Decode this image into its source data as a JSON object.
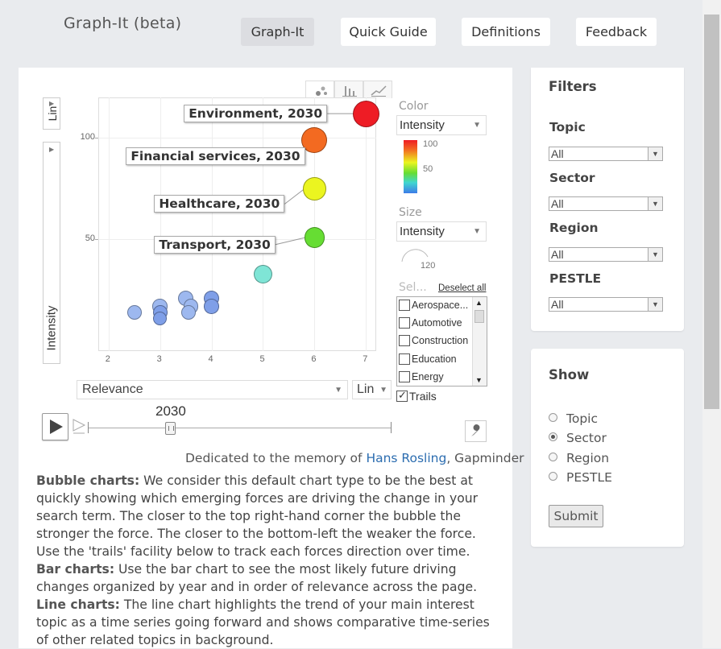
{
  "header": {
    "app_title": "Graph-It (beta)",
    "nav": [
      {
        "label": "Graph-It",
        "active": true
      },
      {
        "label": "Quick Guide",
        "active": false
      },
      {
        "label": "Definitions",
        "active": false
      },
      {
        "label": "Feedback",
        "active": false
      }
    ]
  },
  "chart": {
    "y_scale_label": "Lin",
    "y_axis_title": "Intensity",
    "x_axis_select": "Relevance",
    "x_scale_select": "Lin",
    "color_label": "Color",
    "color_select": "Intensity",
    "color_legend_ticks": [
      "100",
      "50"
    ],
    "size_label": "Size",
    "size_select": "Intensity",
    "size_legend_value": "120",
    "select_label": "Sel...",
    "deselect_all": "Deselect all",
    "entity_list": [
      "Aerospace...",
      "Automotive",
      "Construction",
      "Education",
      "Energy"
    ],
    "trails_label": "Trails",
    "year_label": "2030",
    "x_ticks": [
      "2",
      "3",
      "4",
      "5",
      "6",
      "7"
    ],
    "y_ticks": [
      "100",
      "50"
    ]
  },
  "chart_data": {
    "type": "scatter",
    "xlabel": "Relevance",
    "ylabel": "Intensity",
    "xlim": [
      1.8,
      7.2
    ],
    "ylim": [
      -5,
      120
    ],
    "labeled_points": [
      {
        "label": "Environment, 2030",
        "x": 7,
        "y": 112,
        "size": 120,
        "color": "#ee1c25"
      },
      {
        "label": "Financial services, 2030",
        "x": 6,
        "y": 99,
        "size": 108,
        "color": "#f36a21"
      },
      {
        "label": "Healthcare, 2030",
        "x": 6,
        "y": 75,
        "size": 78,
        "color": "#ebf520"
      },
      {
        "label": "Transport, 2030",
        "x": 6,
        "y": 51,
        "size": 54,
        "color": "#66dd33"
      }
    ],
    "points": [
      {
        "x": 5,
        "y": 33,
        "size": 40,
        "color": "#7fe5d6"
      },
      {
        "x": 2.5,
        "y": 14,
        "size": 14,
        "color": "#9db8ef"
      },
      {
        "x": 3,
        "y": 17,
        "size": 16,
        "color": "#9db8ef"
      },
      {
        "x": 3,
        "y": 14,
        "size": 14,
        "color": "#7f9fe8"
      },
      {
        "x": 3,
        "y": 11,
        "size": 12,
        "color": "#7f9fe8"
      },
      {
        "x": 3.5,
        "y": 21,
        "size": 20,
        "color": "#9db8ef"
      },
      {
        "x": 3.6,
        "y": 17,
        "size": 16,
        "color": "#9db8ef"
      },
      {
        "x": 3.55,
        "y": 14,
        "size": 14,
        "color": "#9db8ef"
      },
      {
        "x": 4,
        "y": 21,
        "size": 20,
        "color": "#7f9fe8"
      },
      {
        "x": 4,
        "y": 17,
        "size": 17,
        "color": "#7f9fe8"
      }
    ]
  },
  "caption": {
    "prefix": "Dedicated to the memory of ",
    "link": "Hans Rosling",
    "suffix": ", Gapminder"
  },
  "descriptions": [
    {
      "term": "Bubble charts:",
      "text": " We consider this default chart type to be the best at quickly showing which emerging forces are driving the change in your search term. The closer to the top right-hand corner the bubble the stronger the force. The closer to the bottom-left the weaker the force. Use the 'trails' facility below to track each forces direction over time."
    },
    {
      "term": "Bar charts:",
      "text": " Use the bar chart to see the most likely future driving changes organized by year and in order of relevance across the page."
    },
    {
      "term": "Line charts:",
      "text": " The line chart highlights the trend of your main interest topic as a time series going forward and shows comparative time-series of other related topics in background."
    }
  ],
  "filters": {
    "title": "Filters",
    "items": [
      {
        "label": "Topic",
        "value": "All"
      },
      {
        "label": "Sector",
        "value": "All"
      },
      {
        "label": "Region",
        "value": "All"
      },
      {
        "label": "PESTLE",
        "value": "All"
      }
    ]
  },
  "show": {
    "title": "Show",
    "options": [
      {
        "label": "Topic",
        "checked": false
      },
      {
        "label": "Sector",
        "checked": true
      },
      {
        "label": "Region",
        "checked": false
      },
      {
        "label": "PESTLE",
        "checked": false
      }
    ],
    "submit_label": "Submit"
  }
}
